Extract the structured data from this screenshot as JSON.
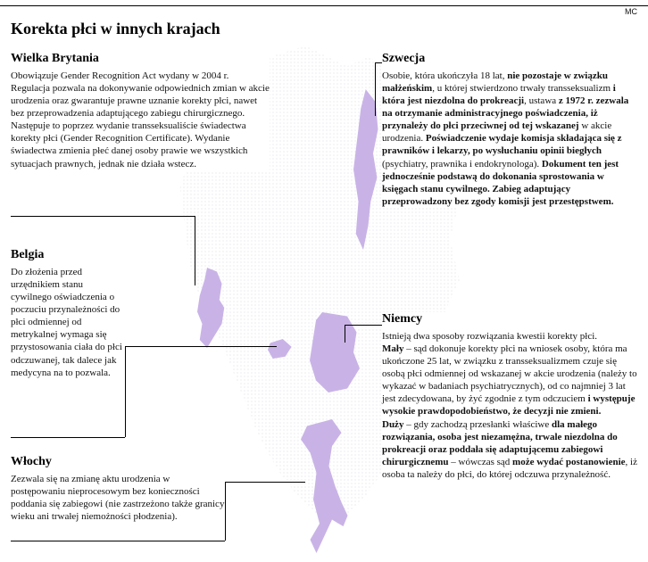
{
  "credit": "MC",
  "title": "Korekta płci w innych krajach",
  "colors": {
    "highlight": "#c9b3e6",
    "dots": "#b8b8c8",
    "text": "#111111",
    "bg": "#ffffff"
  },
  "callouts": {
    "uk": {
      "heading": "Wielka Brytania",
      "body": "Obowiązuje Gender Recognition Act wydany w 2004 r. Regulacja pozwala na dokonywanie odpowiednich zmian w akcie urodzenia oraz gwarantuje prawne uznanie korekty płci, nawet bez przeprowadzenia adaptującego zabiegu chirurgicznego. Następuje to poprzez wydanie transseksualiście świadectwa korekty płci (Gender Recognition Certificate). Wydanie świadectwa zmienia płeć danej osoby prawie we wszystkich sytuacjach prawnych, jednak nie działa wstecz."
    },
    "be": {
      "heading": "Belgia",
      "body": "Do złożenia przed urzędnikiem stanu cywilnego oświad­czenia o poczuciu przynależności do płci odmiennej od metrykalnej wymaga się przy­stosowania ciała do płci odczuwa­nej, tak dalece jak medycyna na to pozwala."
    },
    "it": {
      "heading": "Włochy",
      "body": "Zezwala się na zmianę aktu urodzenia w postępowaniu nieprocesowym bez konieczności poddania się zabiegowi (nie zastrzeżono także granicy wieku ani trwałej niemożności płodzenia)."
    },
    "se": {
      "heading": "Szwecja",
      "body_html": "Osobie, która ukończyła 18 lat, <b>nie pozo­staje w związku małżeńskim</b>, u której stwierdzono trwały transseksualizm <b>i która jest niezdolna do prokreacji</b>, ustawa <b>z 1972 r. zezwala na otrzymanie admini­stracyjnego poświadczenia, iż przynależy do płci przeciwnej od tej wskazanej</b> w akcie urodzenia. <b>Poświadczenie wydaje komisja składająca się z prawników i lekarzy, po wysłuchaniu opinii biegłych</b> (psychiat­ry, prawnika i endokrynologa). <b>Dokument ten jest jednocześnie podstawą do doko­nania sprostowania w księgach stanu cywilnego. Zabieg adaptujący przeprowadzony bez zgody komisji jest przestępstwem.</b>"
    },
    "de": {
      "heading": "Niemcy",
      "body_html": "Istnieją dwa sposoby rozwiązania kwestii korekty płci.<br><b>Mały</b> – sąd dokonuje korekty płci na wniosek osoby, która ma ukończone 25 lat, w związku z transseksualizmem czuje się osobą płci od­miennej od wskazanej w akcie urodzenia (należy to wykazać w badaniach psychiat­rycznych), od co najmniej 3 lat jest zdecydo­wana, by żyć zgodnie z tym odczuciem <b>i występuje wysokie prawdopodobieństwo, że decyzji nie zmieni.</b><br><b>Duży</b> – gdy zachodzą przesłanki właściwe <b>dla małego rozwiązania, osoba jest niezamężna, trwale niezdolna do prokreacji oraz poddała się adaptującemu zabiegowi chirurgicznemu</b> – wówczas sąd <b>może wydać postanowienie</b>, iż osoba ta należy do płci, do której odczuwa przynależność."
    }
  }
}
